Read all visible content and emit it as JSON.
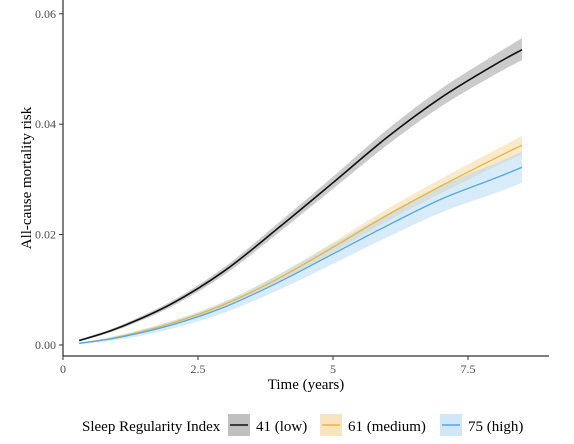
{
  "chart_data": {
    "type": "line",
    "title": "",
    "xlabel": "Time (years)",
    "ylabel": "All-cause mortality risk",
    "xlim": [
      0,
      9.0
    ],
    "ylim": [
      -0.002,
      0.0625
    ],
    "x_ticks": [
      0,
      2.5,
      5,
      7.5
    ],
    "x_tick_labels": [
      "0",
      "2.5",
      "5",
      "7.5"
    ],
    "y_ticks": [
      0.0,
      0.02,
      0.04,
      0.06
    ],
    "y_tick_labels": [
      "0.00",
      "0.02",
      "0.04",
      "0.06"
    ],
    "grid": false,
    "legend_title": "Sleep Regularity Index",
    "legend_position": "bottom",
    "x": [
      0.3,
      1.0,
      2.0,
      3.0,
      4.0,
      5.0,
      6.0,
      7.0,
      8.0,
      8.5
    ],
    "series": [
      {
        "name": "41 (low)",
        "line_color": "#111111",
        "band_color": "#8c8c8c",
        "values": [
          0.0008,
          0.003,
          0.0074,
          0.0135,
          0.0213,
          0.0294,
          0.0376,
          0.0448,
          0.0508,
          0.0535
        ],
        "lower": [
          0.0006,
          0.0027,
          0.0069,
          0.0128,
          0.0204,
          0.0283,
          0.0362,
          0.0432,
          0.049,
          0.0516
        ],
        "upper": [
          0.001,
          0.0033,
          0.0079,
          0.0142,
          0.0222,
          0.0305,
          0.039,
          0.0464,
          0.0526,
          0.0556
        ]
      },
      {
        "name": "61 (medium)",
        "line_color": "#e8b53e",
        "band_color": "#f2d08c",
        "values": [
          0.0003,
          0.0014,
          0.0039,
          0.0074,
          0.0121,
          0.0177,
          0.0235,
          0.0288,
          0.0338,
          0.0362
        ],
        "lower": [
          0.0002,
          0.0012,
          0.0035,
          0.0069,
          0.0114,
          0.0168,
          0.0224,
          0.0275,
          0.0323,
          0.0345
        ],
        "upper": [
          0.0004,
          0.0016,
          0.0043,
          0.0079,
          0.0128,
          0.0186,
          0.0246,
          0.0301,
          0.0353,
          0.0379
        ]
      },
      {
        "name": "75 (high)",
        "line_color": "#55a8dd",
        "band_color": "#a8d3f2",
        "values": [
          0.0003,
          0.0013,
          0.0036,
          0.0069,
          0.0114,
          0.0165,
          0.0216,
          0.0264,
          0.0302,
          0.0322
        ],
        "lower": [
          0.0002,
          0.0009,
          0.0029,
          0.0059,
          0.01,
          0.0147,
          0.0195,
          0.024,
          0.0275,
          0.0294
        ],
        "upper": [
          0.0004,
          0.0017,
          0.0043,
          0.0079,
          0.0128,
          0.0183,
          0.0237,
          0.0288,
          0.0329,
          0.035
        ]
      }
    ]
  }
}
